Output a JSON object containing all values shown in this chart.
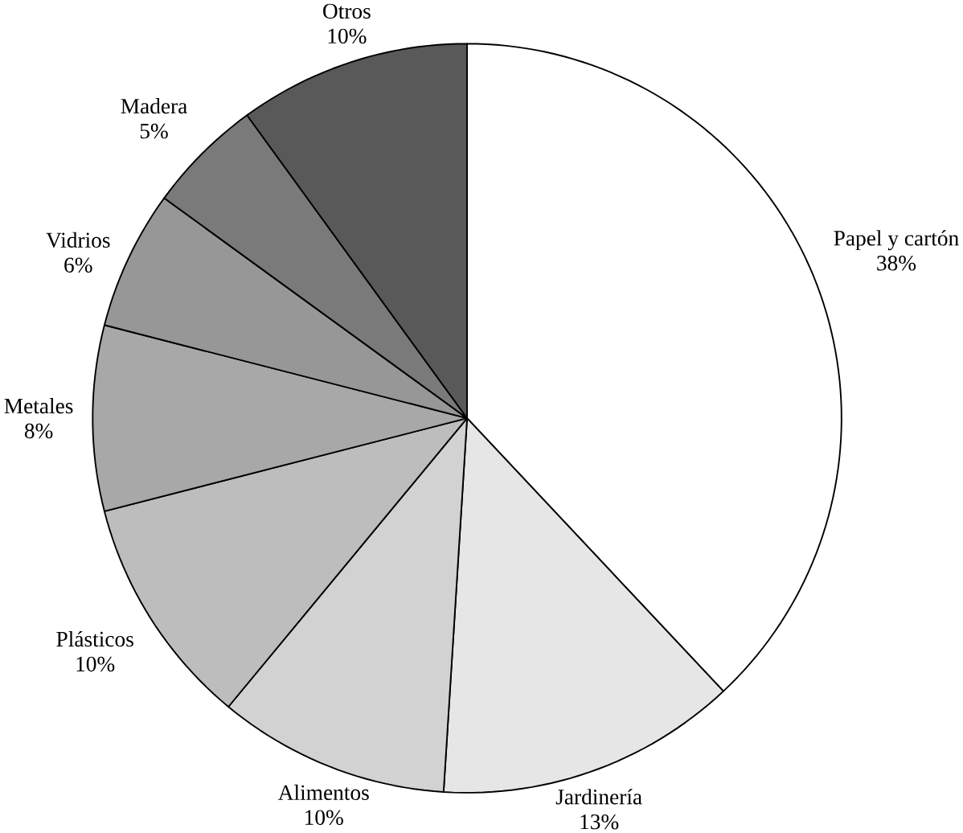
{
  "chart_data": {
    "type": "pie",
    "categories": [
      "Papel y cartón",
      "Jardinería",
      "Alimentos",
      "Plásticos",
      "Metales",
      "Vidrios",
      "Madera",
      "Otros"
    ],
    "values": [
      38,
      13,
      10,
      10,
      8,
      6,
      5,
      10
    ],
    "value_labels": [
      "38%",
      "13%",
      "10%",
      "10%",
      "8%",
      "6%",
      "5%",
      "10%"
    ],
    "colors": [
      "#ffffff",
      "#e6e6e6",
      "#d2d2d2",
      "#bdbdbd",
      "#a8a8a8",
      "#979797",
      "#7a7a7a",
      "#595959"
    ]
  }
}
